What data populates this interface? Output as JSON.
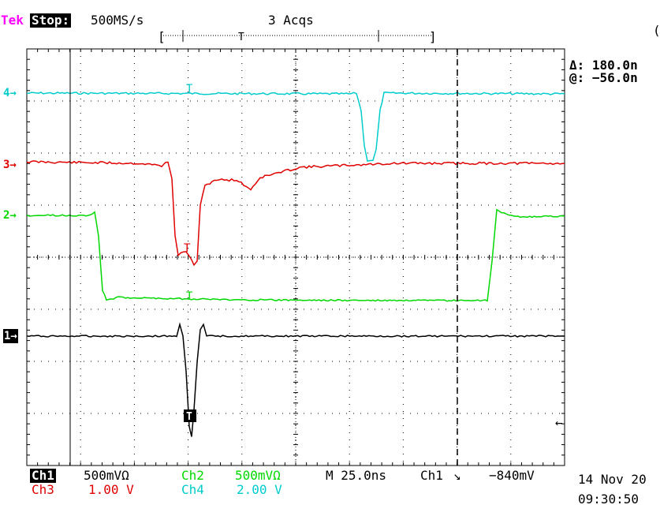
{
  "header": {
    "brand": "Tek",
    "state": "Stop:",
    "sample_rate": "500MS/s",
    "acquisitions": "3 Acqs",
    "top_right_paren": "("
  },
  "cursor_readout": {
    "delta": "Δ: 180.0n",
    "at": "@: −56.0n"
  },
  "channel_markers": {
    "ch4": "4→",
    "ch3": "3→",
    "ch2": "2→",
    "ch1": "1→"
  },
  "bottom": {
    "ch1_label": "Ch1",
    "ch1_scale": "500mVΩ",
    "ch2_label": "Ch2",
    "ch2_scale": "500mVΩ",
    "timebase": "M 25.0ns",
    "trigger_source": "Ch1",
    "trigger_slope": "↘",
    "trigger_level": "−840mV",
    "ch3_label": "Ch3",
    "ch3_scale": "1.00 V",
    "ch4_label": "Ch4",
    "ch4_scale": "2.00 V",
    "date": "14 Nov 20",
    "time": "09:30:50"
  },
  "colors": {
    "ch1": "#000000",
    "ch2": "#00d800",
    "ch3": "#e00000",
    "ch4": "#00cccc",
    "brand": "#ff00ff"
  }
}
